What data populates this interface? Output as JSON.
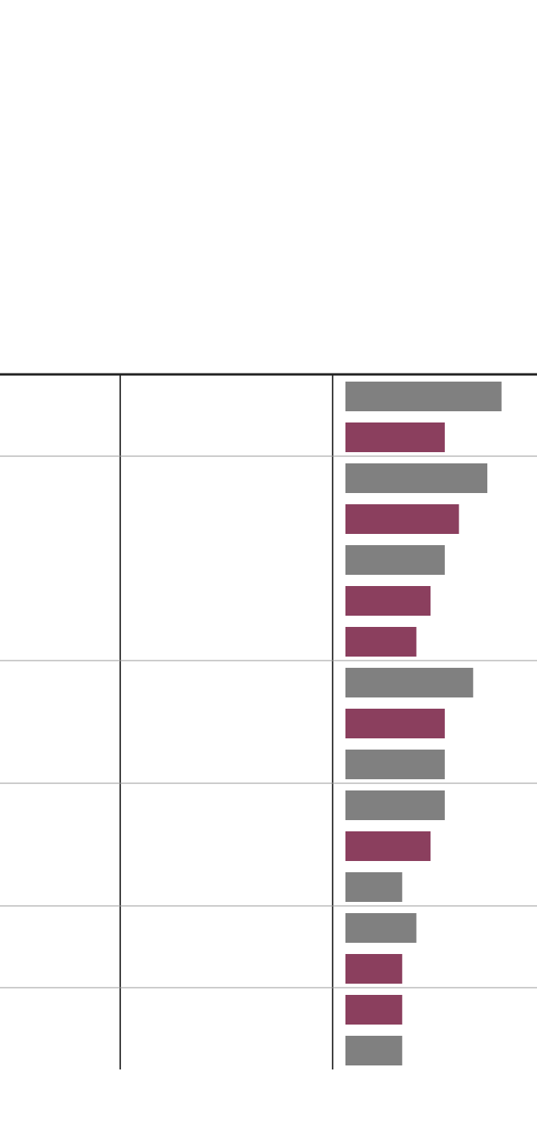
{
  "chart_data": {
    "type": "bar",
    "orientation": "horizontal",
    "xlim": [
      0,
      13.5
    ],
    "rows": [
      {
        "bars": [
          {
            "value": 11,
            "color": "#808080"
          },
          {
            "value": 7,
            "color": "#8b3f5e"
          }
        ]
      },
      {
        "bars": [
          {
            "value": 10,
            "color": "#808080"
          },
          {
            "value": 8,
            "color": "#8b3f5e"
          },
          {
            "value": 7,
            "color": "#808080"
          },
          {
            "value": 6,
            "color": "#8b3f5e"
          },
          {
            "value": 5,
            "color": "#8b3f5e"
          }
        ]
      },
      {
        "bars": [
          {
            "value": 9,
            "color": "#808080"
          },
          {
            "value": 7,
            "color": "#8b3f5e"
          },
          {
            "value": 7,
            "color": "#808080"
          }
        ]
      },
      {
        "bars": [
          {
            "value": 7,
            "color": "#808080"
          },
          {
            "value": 6,
            "color": "#8b3f5e"
          },
          {
            "value": 4,
            "color": "#808080"
          }
        ]
      },
      {
        "bars": [
          {
            "value": 5,
            "color": "#808080"
          },
          {
            "value": 4,
            "color": "#8b3f5e"
          }
        ]
      },
      {
        "bars": [
          {
            "value": 4,
            "color": "#8b3f5e"
          },
          {
            "value": 4,
            "color": "#808080"
          }
        ]
      }
    ]
  }
}
